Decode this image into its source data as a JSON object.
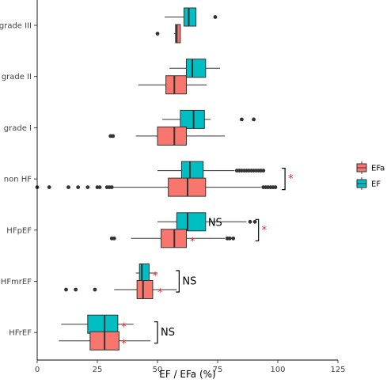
{
  "chart_data": {
    "type": "boxplot",
    "orientation": "horizontal",
    "xlabel": "EF / EFa (%)",
    "ylabel": "",
    "xlim": [
      0,
      125
    ],
    "x_ticks": [
      0,
      25,
      50,
      75,
      100,
      125
    ],
    "categories": [
      "grade III",
      "grade II",
      "grade I",
      "non HF",
      "HFpEF",
      "HFmrEF",
      "HFrEF"
    ],
    "legend": {
      "position": "right",
      "entries": [
        {
          "name": "EFa",
          "color": "#F8766D"
        },
        {
          "name": "EF",
          "color": "#00BFC4"
        }
      ]
    },
    "series": [
      {
        "name": "EF",
        "color": "#00BFC4",
        "boxes": [
          {
            "category": "grade III",
            "whisker_low": 53,
            "q1": 61,
            "median": 63,
            "q3": 66,
            "whisker_high": 66,
            "outliers": [
              74
            ]
          },
          {
            "category": "grade II",
            "whisker_low": 55,
            "q1": 62,
            "median": 64.5,
            "q3": 70,
            "whisker_high": 76,
            "outliers": []
          },
          {
            "category": "grade I",
            "whisker_low": 52,
            "q1": 59.5,
            "median": 65,
            "q3": 69.5,
            "whisker_high": 72,
            "outliers": [
              85,
              90
            ]
          },
          {
            "category": "non HF",
            "whisker_low": 50,
            "q1": 60,
            "median": 63.5,
            "q3": 69,
            "whisker_high": 82,
            "outliers": [
              83,
              84,
              85,
              86,
              87,
              88,
              89,
              90,
              91,
              92,
              93,
              94
            ]
          },
          {
            "category": "HFpEF",
            "whisker_low": 50,
            "q1": 58,
            "median": 62.5,
            "q3": 70,
            "whisker_high": 87,
            "outliers": [
              88.5,
              90.5
            ]
          },
          {
            "category": "HFmrEF",
            "whisker_low": 41,
            "q1": 42.5,
            "median": 43.5,
            "q3": 46.5,
            "whisker_high": 50,
            "outliers": []
          },
          {
            "category": "HFrEF",
            "whisker_low": 10,
            "q1": 21,
            "median": 28,
            "q3": 33.5,
            "whisker_high": 40,
            "outliers": []
          }
        ]
      },
      {
        "name": "EFa",
        "color": "#F8766D",
        "boxes": [
          {
            "category": "grade III",
            "whisker_low": 57,
            "q1": 57.5,
            "median": 58,
            "q3": 59.5,
            "whisker_high": 59.5,
            "outliers": [
              50
            ]
          },
          {
            "category": "grade II",
            "whisker_low": 42,
            "q1": 53.5,
            "median": 57,
            "q3": 62,
            "whisker_high": 70.5,
            "outliers": []
          },
          {
            "category": "grade I",
            "whisker_low": 41,
            "q1": 50,
            "median": 57,
            "q3": 62,
            "whisker_high": 78,
            "outliers": [
              30.5,
              31.5
            ]
          },
          {
            "category": "non HF",
            "whisker_low": 31,
            "q1": 54.5,
            "median": 62.5,
            "q3": 70,
            "whisker_high": 93,
            "outliers": [
              0,
              5,
              13,
              17,
              21,
              25,
              26,
              29,
              30,
              31,
              94,
              95,
              96,
              97,
              98,
              99
            ]
          },
          {
            "category": "HFpEF",
            "whisker_low": 39,
            "q1": 51.5,
            "median": 57,
            "q3": 62,
            "whisker_high": 78,
            "outliers": [
              31,
              32,
              79,
              80,
              81.5
            ]
          },
          {
            "category": "HFmrEF",
            "whisker_low": 32,
            "q1": 41.5,
            "median": 44,
            "q3": 48,
            "whisker_high": 58,
            "outliers": [
              12,
              16,
              24
            ]
          },
          {
            "category": "HFrEF",
            "whisker_low": 9,
            "q1": 22,
            "median": 28,
            "q3": 34,
            "whisker_high": 47,
            "outliers": []
          }
        ]
      }
    ],
    "annotations": [
      {
        "type": "star",
        "text": "*",
        "category": "HFpEF",
        "series": "EFa",
        "x": 63.5
      },
      {
        "type": "star",
        "text": "*",
        "category": "HFmrEF",
        "series": "EF",
        "x": 48
      },
      {
        "type": "star",
        "text": "*",
        "category": "HFmrEF",
        "series": "EFa",
        "x": 50
      },
      {
        "type": "star",
        "text": "*",
        "category": "HFrEF",
        "series": "EF",
        "x": 35
      },
      {
        "type": "star",
        "text": "*",
        "category": "HFrEF",
        "series": "EFa",
        "x": 35
      },
      {
        "type": "bracket",
        "text": "*",
        "category": "non HF",
        "x": 103,
        "star": true
      },
      {
        "type": "bracket",
        "text": "*",
        "category": "HFpEF",
        "x": 92,
        "star": true
      },
      {
        "type": "bracket",
        "text": "NS",
        "category": "HFmrEF",
        "x": 59,
        "star": false
      },
      {
        "type": "bracket",
        "text": "NS",
        "category": "HFrEF",
        "x": 50,
        "star": false
      },
      {
        "type": "label",
        "text": "NS",
        "category": "HFpEF",
        "series": "EF",
        "x": 71
      }
    ]
  }
}
